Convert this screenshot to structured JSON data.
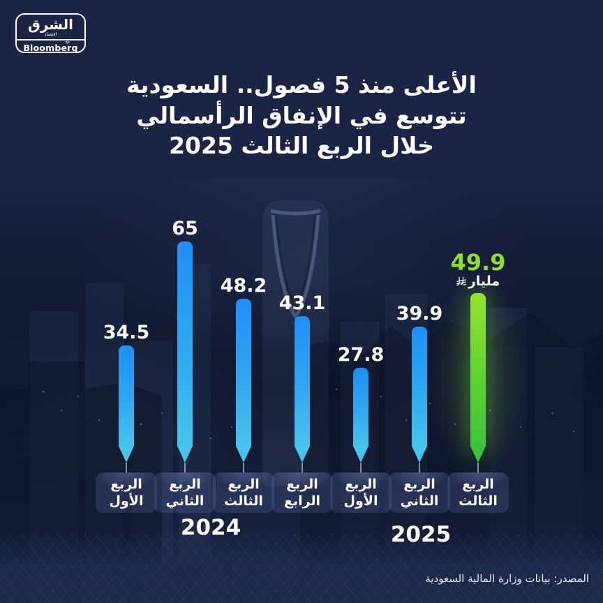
{
  "brand": {
    "name_arabic": "الشرق",
    "name_sub": "اقتصاد",
    "with_label": "مع",
    "partner": "Bloomberg"
  },
  "title": {
    "line1": "الأعلى منذ 5 فصول.. السعودية",
    "line2": "تتوسع في الإنفاق الرأسمالي",
    "line3": "خلال الربع الثالث 2025"
  },
  "highlight": {
    "unit": "مليار",
    "unit_currency": "ريال سعودي"
  },
  "years": {
    "left_group": "2024",
    "right_group": "2025"
  },
  "source": "المصدر: بيانات وزارة المالية السعودية",
  "bars": [
    {
      "value": "34.5",
      "label_top": "الربع",
      "label_bottom": "الأول",
      "year": "2024"
    },
    {
      "value": "65",
      "label_top": "الربع",
      "label_bottom": "الثاني",
      "year": "2024"
    },
    {
      "value": "48.2",
      "label_top": "الربع",
      "label_bottom": "الثالث",
      "year": "2024"
    },
    {
      "value": "43.1",
      "label_top": "الربع",
      "label_bottom": "الرابع",
      "year": "2024"
    },
    {
      "value": "27.8",
      "label_top": "الربع",
      "label_bottom": "الأول",
      "year": "2025"
    },
    {
      "value": "39.9",
      "label_top": "الربع",
      "label_bottom": "الثاني",
      "year": "2025"
    },
    {
      "value": "49.9",
      "label_top": "الربع",
      "label_bottom": "الثالث",
      "year": "2025"
    }
  ],
  "chart_data": {
    "type": "bar",
    "title": "الأعلى منذ 5 فصول.. السعودية تتوسع في الإنفاق الرأسمالي خلال الربع الثالث 2025",
    "ylabel": "مليار ريال",
    "categories": [
      "الربع الأول 2024",
      "الربع الثاني 2024",
      "الربع الثالث 2024",
      "الربع الرابع 2024",
      "الربع الأول 2025",
      "الربع الثاني 2025",
      "الربع الثالث 2025"
    ],
    "values": [
      34.5,
      65,
      48.2,
      43.1,
      27.8,
      39.9,
      49.9
    ],
    "highlight_index": 6,
    "ylim": [
      0,
      65
    ],
    "grid": false,
    "legend": "none",
    "colors": {
      "bar_blue_top": "#1E8FF7",
      "bar_blue_bottom": "#46C4EC",
      "bar_green_top": "#93E52C",
      "bar_green_bottom": "#3DC43D",
      "highlight_value_text": "#8DE12D",
      "background": "#1B2445",
      "text": "#FFFFFF"
    }
  }
}
